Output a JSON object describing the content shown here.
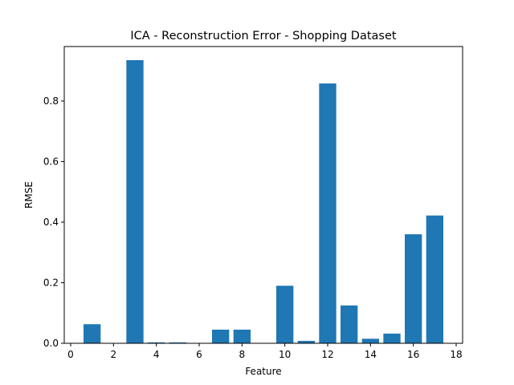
{
  "chart_data": {
    "type": "bar",
    "title": "ICA - Reconstruction Error - Shopping Dataset",
    "xlabel": "Feature",
    "ylabel": "RMSE",
    "x": [
      1,
      2,
      3,
      4,
      5,
      6,
      7,
      8,
      9,
      10,
      11,
      12,
      13,
      14,
      15,
      16,
      17
    ],
    "values": [
      0.063,
      0.0,
      0.935,
      0.003,
      0.003,
      0.0,
      0.045,
      0.045,
      0.0,
      0.19,
      0.008,
      0.858,
      0.125,
      0.015,
      0.032,
      0.36,
      0.422
    ],
    "bar_width": 0.8,
    "xlim": [
      -0.3,
      18.3
    ],
    "ylim": [
      0,
      0.98
    ],
    "xticks": [
      0,
      2,
      4,
      6,
      8,
      10,
      12,
      14,
      16,
      18
    ],
    "yticks": [
      0.0,
      0.2,
      0.4,
      0.6,
      0.8
    ],
    "ytick_labels": [
      "0.0",
      "0.2",
      "0.4",
      "0.6",
      "0.8"
    ],
    "bar_color": "#1f77b4",
    "grid": false,
    "legend": "none"
  }
}
